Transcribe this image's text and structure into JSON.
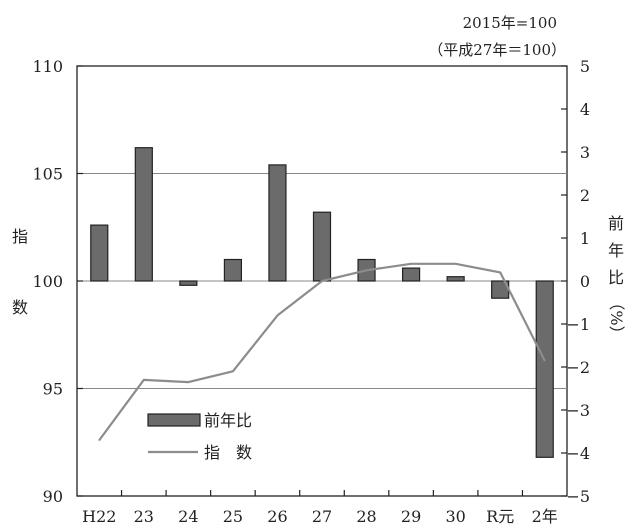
{
  "chart_data": {
    "type": "bar+line",
    "base_note_line1": "2015年=100",
    "base_note_line2": "（平成27年＝100）",
    "left_axis_label": [
      "指",
      "数"
    ],
    "right_axis_label": [
      "前",
      "年",
      "比",
      "（%）"
    ],
    "categories": [
      "H22",
      "23",
      "24",
      "25",
      "26",
      "27",
      "28",
      "29",
      "30",
      "R元",
      "2年"
    ],
    "left_ticks": [
      "110",
      "105",
      "100",
      "95",
      "90"
    ],
    "right_ticks": [
      "5",
      "4",
      "3",
      "2",
      "1",
      "0",
      "−1",
      "−2",
      "−3",
      "−4",
      "−5"
    ],
    "ylim_left": [
      90,
      110
    ],
    "ylim_right": [
      -5,
      5
    ],
    "bar_series": {
      "name": "前年比",
      "axis": "right",
      "color": "#6b6b6b",
      "values": [
        1.3,
        3.1,
        -0.1,
        0.5,
        2.7,
        1.6,
        0.5,
        0.3,
        0.1,
        -0.4,
        -4.1
      ]
    },
    "line_series": {
      "name": "指　数",
      "axis": "left",
      "color": "#8c8c8c",
      "values": [
        92.6,
        95.4,
        95.3,
        95.8,
        98.4,
        100.0,
        100.5,
        100.8,
        100.8,
        100.4,
        96.3
      ]
    },
    "gridlines_left": [
      105,
      100,
      95
    ]
  }
}
